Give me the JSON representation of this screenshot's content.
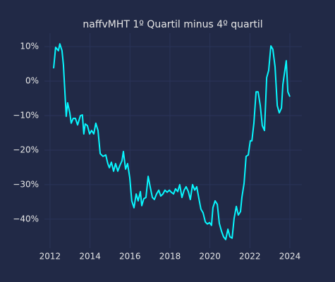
{
  "chart_data": {
    "type": "line",
    "title": "naffvMHT 1º Quartil minus 4º quartil",
    "color": "#08F7FE",
    "grid": true,
    "xlim": [
      2011.72,
      2024.6
    ],
    "xticks": [
      2012,
      2014,
      2016,
      2018,
      2020,
      2022,
      2024
    ],
    "ylim": [
      -48.4,
      13.9
    ],
    "yticks": [
      {
        "value": 10,
        "label": "10%"
      },
      {
        "value": 0,
        "label": "0%"
      },
      {
        "value": -10,
        "label": "−10%"
      },
      {
        "value": -20,
        "label": "−20%"
      },
      {
        "value": -30,
        "label": "−30%"
      },
      {
        "value": -40,
        "label": "−40%"
      }
    ],
    "x": [
      2012.18,
      2012.28,
      2012.42,
      2012.49,
      2012.6,
      2012.67,
      2012.81,
      2012.88,
      2012.99,
      2013.06,
      2013.16,
      2013.27,
      2013.38,
      2013.52,
      2013.62,
      2013.69,
      2013.76,
      2013.87,
      2013.98,
      2014.08,
      2014.19,
      2014.29,
      2014.4,
      2014.51,
      2014.65,
      2014.79,
      2014.89,
      2014.97,
      2015.07,
      2015.18,
      2015.28,
      2015.39,
      2015.49,
      2015.6,
      2015.67,
      2015.78,
      2015.88,
      2015.99,
      2016.09,
      2016.2,
      2016.31,
      2016.41,
      2016.52,
      2016.59,
      2016.69,
      2016.8,
      2016.91,
      2017.01,
      2017.12,
      2017.22,
      2017.33,
      2017.44,
      2017.54,
      2017.65,
      2017.75,
      2017.86,
      2017.97,
      2018.07,
      2018.18,
      2018.28,
      2018.39,
      2018.49,
      2018.6,
      2018.71,
      2018.81,
      2018.92,
      2019.02,
      2019.13,
      2019.24,
      2019.34,
      2019.45,
      2019.55,
      2019.66,
      2019.77,
      2019.87,
      2019.98,
      2020.08,
      2020.15,
      2020.26,
      2020.37,
      2020.47,
      2020.58,
      2020.68,
      2020.79,
      2020.9,
      2021.0,
      2021.11,
      2021.21,
      2021.32,
      2021.42,
      2021.53,
      2021.6,
      2021.71,
      2021.81,
      2021.92,
      2022.02,
      2022.1,
      2022.2,
      2022.31,
      2022.41,
      2022.52,
      2022.62,
      2022.73,
      2022.84,
      2022.94,
      2023.05,
      2023.15,
      2023.26,
      2023.37,
      2023.47,
      2023.58,
      2023.65,
      2023.75,
      2023.82,
      2023.9,
      2024.0
    ],
    "values": [
      3.7,
      9.8,
      8.8,
      10.8,
      8.8,
      4.7,
      -10.2,
      -6.3,
      -9.2,
      -12.2,
      -10.8,
      -10.8,
      -12.7,
      -10.0,
      -9.8,
      -15.3,
      -12.4,
      -12.9,
      -15.3,
      -14.3,
      -15.3,
      -12.2,
      -14.3,
      -21.0,
      -21.8,
      -21.4,
      -23.9,
      -25.1,
      -23.5,
      -26.1,
      -23.9,
      -26.1,
      -24.5,
      -23.1,
      -20.4,
      -25.5,
      -23.9,
      -28.0,
      -34.7,
      -36.7,
      -32.7,
      -34.7,
      -32.0,
      -36.1,
      -34.1,
      -33.7,
      -27.6,
      -30.6,
      -33.7,
      -34.3,
      -32.7,
      -31.6,
      -33.3,
      -32.7,
      -31.6,
      -32.2,
      -31.6,
      -32.2,
      -32.7,
      -31.2,
      -32.0,
      -30.0,
      -33.7,
      -31.6,
      -30.6,
      -32.0,
      -34.3,
      -30.0,
      -31.6,
      -30.6,
      -34.1,
      -37.1,
      -38.2,
      -40.8,
      -41.4,
      -41.0,
      -41.8,
      -36.7,
      -34.7,
      -35.7,
      -41.2,
      -43.5,
      -45.1,
      -45.9,
      -42.9,
      -45.1,
      -45.5,
      -39.8,
      -36.3,
      -38.8,
      -37.8,
      -33.7,
      -29.6,
      -21.8,
      -21.4,
      -17.3,
      -17.3,
      -12.2,
      -3.1,
      -3.1,
      -7.1,
      -12.9,
      -14.3,
      1.0,
      3.1,
      10.2,
      9.2,
      4.1,
      -7.1,
      -9.2,
      -7.8,
      -1.0,
      3.1,
      5.9,
      -3.1,
      -4.5
    ]
  }
}
